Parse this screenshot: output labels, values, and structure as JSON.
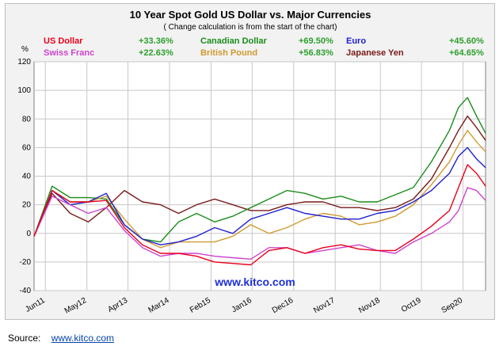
{
  "chart_data": {
    "type": "line",
    "title": "10 Year Spot Gold US Dollar vs. Major Currencies",
    "subtitle": "( Change calculation is from the start of the chart)",
    "ylabel": "%",
    "ylim": [
      -40,
      120
    ],
    "yticks": [
      "120",
      "100",
      "80",
      "60",
      "40",
      "20",
      "0",
      "-20",
      "-40"
    ],
    "ytick_values": [
      120,
      100,
      80,
      60,
      40,
      20,
      0,
      -20,
      -40
    ],
    "xlim": [
      0,
      10
    ],
    "xticks": [
      "Jun11",
      "May12",
      "Apr13",
      "Mar14",
      "Feb15",
      "Jan16",
      "Dec16",
      "Nov17",
      "Nov18",
      "Oct19",
      "Sep20"
    ],
    "xtick_positions": [
      0.25,
      1.17,
      2.08,
      3.0,
      3.92,
      4.83,
      5.75,
      6.67,
      7.67,
      8.58,
      9.5
    ],
    "grid": true,
    "legend_position": "top",
    "watermark": "www.kitco.com",
    "x": [
      0,
      0.4,
      0.8,
      1.2,
      1.6,
      2.0,
      2.4,
      2.8,
      3.2,
      3.6,
      4.0,
      4.4,
      4.8,
      5.2,
      5.6,
      6.0,
      6.4,
      6.8,
      7.2,
      7.6,
      8.0,
      8.4,
      8.8,
      9.2,
      9.4,
      9.6,
      9.8,
      10.0
    ],
    "series": [
      {
        "name": "US Dollar",
        "change": "+33.36%",
        "color": "#e8001c",
        "values": [
          -2,
          30,
          22,
          22,
          23,
          4,
          -8,
          -14,
          -14,
          -16,
          -20,
          -21,
          -22,
          -12,
          -10,
          -14,
          -10,
          -8,
          -11,
          -12,
          -12,
          -4,
          5,
          16,
          32,
          48,
          42,
          33
        ]
      },
      {
        "name": "Canadian Dollar",
        "change": "+69.50%",
        "color": "#1a8c1a",
        "values": [
          -2,
          33,
          25,
          25,
          24,
          6,
          -4,
          -6,
          8,
          14,
          8,
          12,
          18,
          24,
          30,
          28,
          24,
          26,
          22,
          22,
          27,
          32,
          50,
          72,
          88,
          95,
          82,
          70
        ]
      },
      {
        "name": "Euro",
        "change": "+45.60%",
        "color": "#1f1fd0",
        "values": [
          -2,
          30,
          20,
          22,
          28,
          6,
          -4,
          -8,
          -6,
          -2,
          4,
          0,
          10,
          14,
          18,
          14,
          12,
          10,
          10,
          14,
          16,
          22,
          30,
          42,
          54,
          60,
          52,
          46
        ]
      },
      {
        "name": "Swiss Franc",
        "change": "+22.63%",
        "color": "#cc44cc",
        "values": [
          -2,
          26,
          20,
          14,
          18,
          2,
          -10,
          -16,
          -14,
          -14,
          -16,
          -17,
          -18,
          -10,
          -10,
          -14,
          -12,
          -10,
          -8,
          -12,
          -14,
          -6,
          0,
          8,
          16,
          32,
          30,
          23
        ]
      },
      {
        "name": "British Pound",
        "change": "+56.83%",
        "color": "#d09a30",
        "values": [
          -2,
          30,
          22,
          22,
          26,
          10,
          -4,
          -10,
          -6,
          -6,
          -6,
          -2,
          6,
          0,
          4,
          10,
          14,
          12,
          6,
          8,
          12,
          20,
          34,
          50,
          62,
          72,
          64,
          57
        ]
      },
      {
        "name": "Japanese Yen",
        "change": "+64.65%",
        "color": "#7a1a1a",
        "values": [
          -2,
          28,
          14,
          8,
          18,
          30,
          22,
          20,
          14,
          20,
          24,
          20,
          16,
          16,
          20,
          22,
          22,
          18,
          18,
          16,
          18,
          24,
          38,
          60,
          72,
          82,
          74,
          65
        ]
      }
    ]
  },
  "source": {
    "label": "Source:",
    "link_text": "www.kitco.com"
  }
}
